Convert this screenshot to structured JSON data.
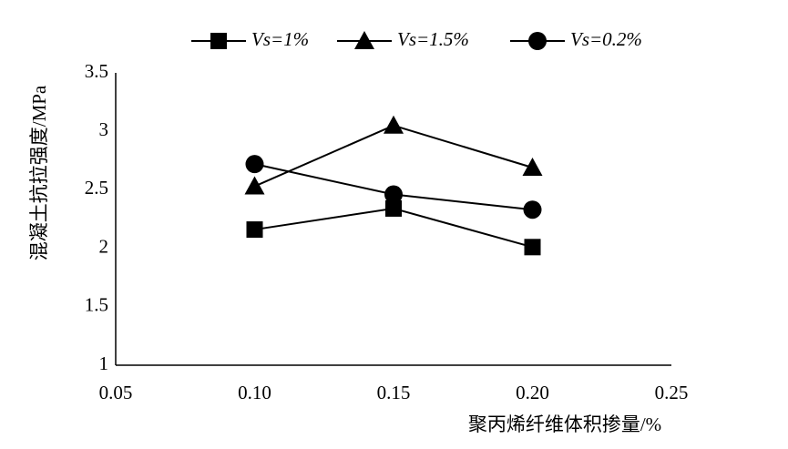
{
  "chart_data": {
    "type": "line",
    "xlabel": "聚丙烯纤维体积掺量/%",
    "ylabel": "混凝土抗拉强度/MPa",
    "x": [
      0.1,
      0.15,
      0.2
    ],
    "series": [
      {
        "name": "Vs=1%",
        "color": "#000000",
        "marker": "square",
        "values": [
          2.16,
          2.34,
          2.01
        ]
      },
      {
        "name": "Vs=1.5%",
        "color": "#000000",
        "marker": "triangle",
        "values": [
          2.53,
          3.05,
          2.69
        ]
      },
      {
        "name": "Vs=0.2%",
        "color": "#000000",
        "marker": "circle",
        "values": [
          2.72,
          2.46,
          2.33
        ]
      }
    ],
    "xlim": [
      0.05,
      0.25
    ],
    "xticks": [
      0.05,
      {
        "value": 0.1,
        "label": "0.10"
      },
      0.15,
      {
        "value": 0.2,
        "label": "0.20"
      },
      0.25
    ],
    "ylim": [
      1,
      3.5
    ],
    "yticks": [
      1,
      1.5,
      2,
      2.5,
      3,
      3.5
    ],
    "grid": false,
    "legend": "top"
  }
}
